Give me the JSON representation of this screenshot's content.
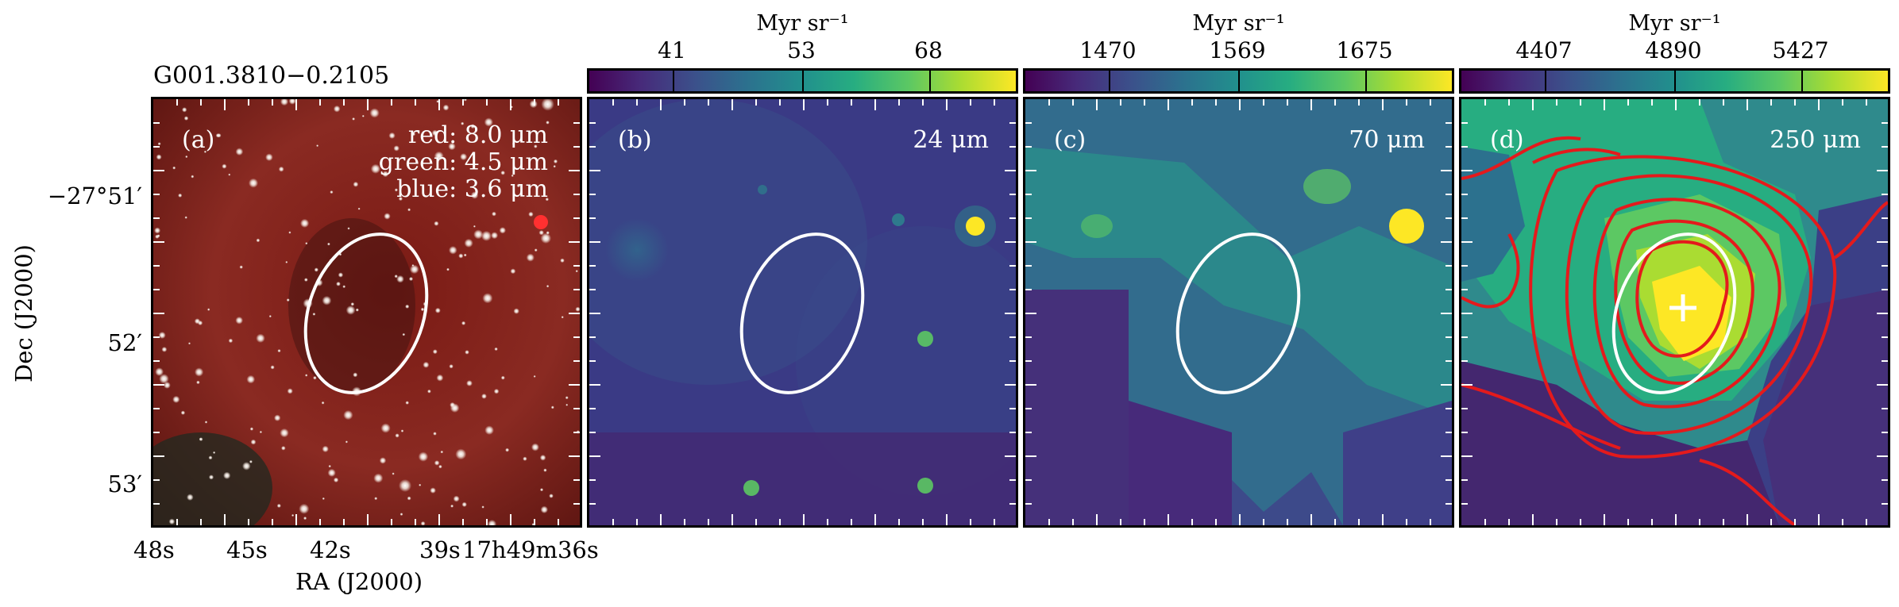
{
  "source_name": "G001.3810−0.2105",
  "axes": {
    "xlabel": "RA (J2000)",
    "ylabel": "Dec (J2000)",
    "x_ticks": [
      "48s",
      "45s",
      "42s",
      "39s",
      "17h49m36s"
    ],
    "y_ticks": [
      "−27°51′",
      "52′",
      "53′"
    ]
  },
  "panels": [
    {
      "id": "a",
      "label": "(a)",
      "legend": [
        "red: 8.0 μm",
        "green: 4.5 μm",
        "blue: 3.6 μm"
      ]
    },
    {
      "id": "b",
      "label": "(b)",
      "wavelength": "24 μm",
      "colorbar": {
        "unit": "Myr sr⁻¹",
        "ticks": [
          "41",
          "53",
          "68"
        ],
        "colormap": "viridis"
      }
    },
    {
      "id": "c",
      "label": "(c)",
      "wavelength": "70 μm",
      "colorbar": {
        "unit": "Myr sr⁻¹",
        "ticks": [
          "1470",
          "1569",
          "1675"
        ],
        "colormap": "viridis"
      }
    },
    {
      "id": "d",
      "label": "(d)",
      "wavelength": "250 μm",
      "colorbar": {
        "unit": "Myr sr⁻¹",
        "ticks": [
          "4407",
          "4890",
          "5427"
        ],
        "colormap": "viridis"
      }
    }
  ],
  "colors": {
    "ellipse": "#ffffff",
    "contours": "#e41a1c",
    "marker": "#ffffff"
  }
}
